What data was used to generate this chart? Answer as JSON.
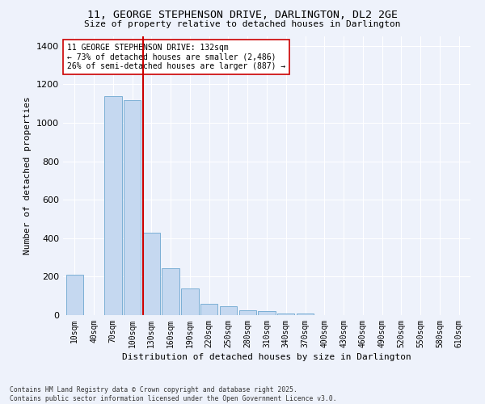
{
  "title_line1": "11, GEORGE STEPHENSON DRIVE, DARLINGTON, DL2 2GE",
  "title_line2": "Size of property relative to detached houses in Darlington",
  "xlabel": "Distribution of detached houses by size in Darlington",
  "ylabel": "Number of detached properties",
  "categories": [
    "10sqm",
    "40sqm",
    "70sqm",
    "100sqm",
    "130sqm",
    "160sqm",
    "190sqm",
    "220sqm",
    "250sqm",
    "280sqm",
    "310sqm",
    "340sqm",
    "370sqm",
    "400sqm",
    "430sqm",
    "460sqm",
    "490sqm",
    "520sqm",
    "550sqm",
    "580sqm",
    "610sqm"
  ],
  "values": [
    210,
    0,
    1140,
    1120,
    430,
    245,
    140,
    60,
    45,
    25,
    20,
    10,
    10,
    0,
    0,
    0,
    0,
    0,
    0,
    0,
    0
  ],
  "bar_color": "#c5d8f0",
  "bar_edge_color": "#7bafd4",
  "vline_index": 4,
  "vline_color": "#cc0000",
  "annotation_text": "11 GEORGE STEPHENSON DRIVE: 132sqm\n← 73% of detached houses are smaller (2,486)\n26% of semi-detached houses are larger (887) →",
  "annotation_box_color": "#ffffff",
  "annotation_box_edge": "#cc0000",
  "ylim": [
    0,
    1450
  ],
  "yticks": [
    0,
    200,
    400,
    600,
    800,
    1000,
    1200,
    1400
  ],
  "background_color": "#eef2fb",
  "grid_color": "#ffffff",
  "footnote": "Contains HM Land Registry data © Crown copyright and database right 2025.\nContains public sector information licensed under the Open Government Licence v3.0."
}
